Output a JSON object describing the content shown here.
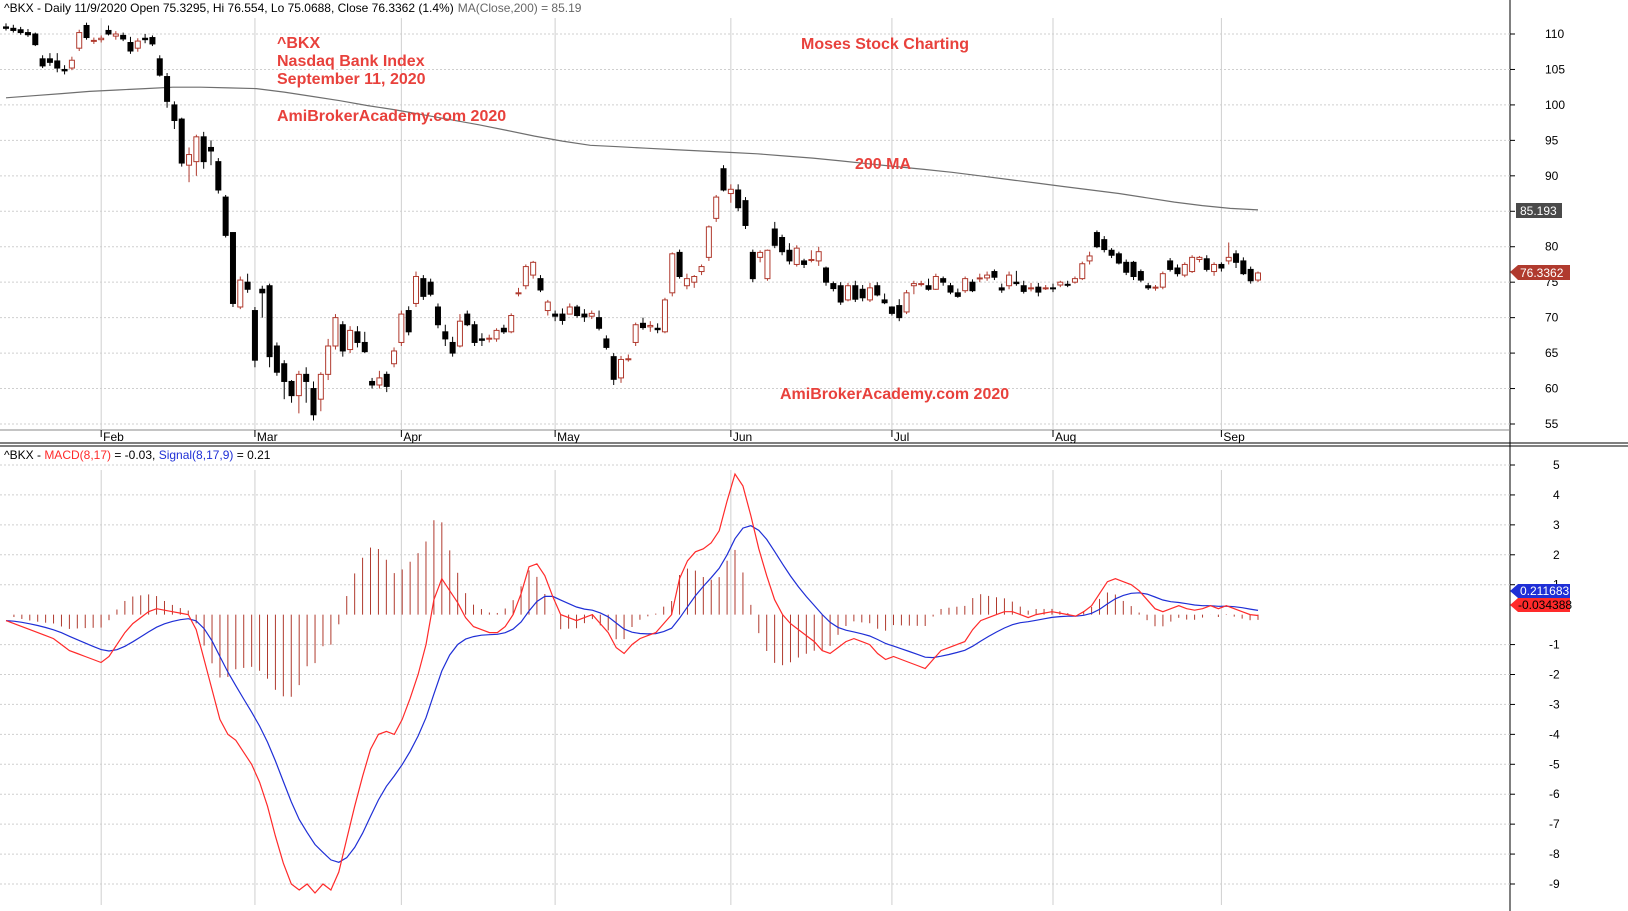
{
  "colors": {
    "candle_up": "#b03a2e",
    "candle_down": "#000000",
    "ma_line": "#6f6f6f",
    "macd_line": "#ff2a2a",
    "signal_line": "#1f2fd6",
    "histogram": "#b03a2e",
    "grid": "#cfcfcf",
    "annotation": "#e8413c",
    "label_ma_bg": "#4a4a4a",
    "label_close_bg": "#b03a2e",
    "label_signal_bg": "#1f2fd6",
    "label_macd_bg": "#ff2a2a"
  },
  "price_panel": {
    "header": {
      "prefix": "^BKX - Daily 11/9/2020 Open 75.3295, Hi 76.554, Lo 75.0688, Close 76.3362 (1.4%)",
      "ma": "MA(Close,200) = 85.19"
    },
    "annotations": {
      "ticker": "^BKX",
      "name": "Nasdaq Bank Index",
      "date": "September 11, 2020",
      "site_top": "AmiBrokerAcademy.com  2020",
      "author": "Moses Stock Charting",
      "ma_label": "200 MA",
      "site_bottom": "AmiBrokerAcademy.com  2020"
    },
    "axis_labels": [
      "110",
      "105",
      "100",
      "95",
      "90",
      "85",
      "80",
      "75",
      "70",
      "65",
      "60",
      "55"
    ],
    "last_ma_label": "85.193",
    "last_close_label": "76.3362"
  },
  "macd_panel": {
    "header": {
      "ticker": "^BKX - ",
      "macd": "MACD(8,17)",
      "macd_value": " = -0.03, ",
      "signal": "Signal(8,17,9)",
      "signal_value": " = 0.21"
    },
    "axis_labels": [
      "5",
      "4",
      "3",
      "2",
      "1",
      "-1",
      "-2",
      "-3",
      "-4",
      "-5",
      "-6",
      "-7",
      "-8",
      "-9"
    ],
    "last_signal_label": "0.211683",
    "last_macd_label": "-0.034388"
  },
  "months": [
    "Feb",
    "Mar",
    "Apr",
    "May",
    "Jun",
    "Jul",
    "Aug",
    "Sep"
  ],
  "chart_data": {
    "type": "line",
    "title": "",
    "price": {
      "ylim": [
        53,
        113
      ],
      "y_ticks": [
        110,
        105,
        100,
        95,
        90,
        85,
        80,
        75,
        70,
        65,
        60,
        55
      ],
      "candles": [
        [
          111,
          111.5,
          110.5,
          110.8
        ],
        [
          110.8,
          111.3,
          110.2,
          110.5
        ],
        [
          110.6,
          111,
          109.9,
          110.2
        ],
        [
          110.2,
          110.7,
          109.6,
          109.9
        ],
        [
          110,
          110.2,
          108.3,
          108.5
        ],
        [
          106.5,
          107,
          105.2,
          105.5
        ],
        [
          106.5,
          107.3,
          105.5,
          106
        ],
        [
          106.2,
          107.3,
          104.6,
          105.2
        ],
        [
          105,
          105.6,
          104.3,
          104.8
        ],
        [
          105.2,
          106.8,
          104.9,
          106.3
        ],
        [
          108,
          110.6,
          107.6,
          110.2
        ],
        [
          111.2,
          111.6,
          109.2,
          109.5
        ],
        [
          109,
          109.5,
          108.6,
          109.1
        ],
        [
          109.2,
          109.8,
          108.8,
          109.4
        ],
        [
          110.5,
          111.2,
          109.8,
          110
        ],
        [
          109.7,
          110.4,
          109.2,
          110
        ],
        [
          109.8,
          110.2,
          109,
          109.3
        ],
        [
          108.8,
          109.6,
          107.2,
          107.6
        ],
        [
          108,
          109.4,
          107.5,
          109
        ],
        [
          109.4,
          110,
          108.7,
          109.2
        ],
        [
          109.5,
          109.8,
          108.3,
          108.6
        ],
        [
          106.5,
          107,
          104,
          104.2
        ],
        [
          104,
          104.5,
          99.6,
          100.5
        ],
        [
          100,
          100.5,
          96.6,
          97.8
        ],
        [
          98,
          98.2,
          91.3,
          91.8
        ],
        [
          91.5,
          94,
          89.1,
          93
        ],
        [
          92,
          95.8,
          90,
          95.5
        ],
        [
          95.5,
          96.2,
          91,
          92
        ],
        [
          94,
          95,
          91.5,
          93.5
        ],
        [
          92,
          92.5,
          87.5,
          88
        ],
        [
          87,
          87.3,
          81.3,
          81.6
        ],
        [
          82,
          82,
          71.5,
          72
        ],
        [
          71.5,
          75.8,
          71.2,
          75.3
        ],
        [
          75,
          76.2,
          73.5,
          74
        ],
        [
          71,
          71.5,
          63,
          64
        ],
        [
          74,
          74.5,
          70,
          73.5
        ],
        [
          74.5,
          74.8,
          63,
          64.5
        ],
        [
          66,
          66.5,
          61.8,
          62.3
        ],
        [
          63.5,
          64,
          58.5,
          61
        ],
        [
          61,
          61.2,
          58,
          59
        ],
        [
          59,
          62.5,
          56.5,
          62
        ],
        [
          62,
          63,
          58,
          61
        ],
        [
          60,
          61,
          55.5,
          56.3
        ],
        [
          58.5,
          62.3,
          56.8,
          62
        ],
        [
          62,
          67,
          61.2,
          66
        ],
        [
          66,
          70.5,
          65.5,
          70
        ],
        [
          69,
          69.5,
          64.5,
          65.3
        ],
        [
          65.5,
          68.8,
          65,
          68.2
        ],
        [
          68,
          68.8,
          65.8,
          66.5
        ],
        [
          66.5,
          68,
          65,
          65.2
        ],
        [
          61,
          61.5,
          60,
          60.5
        ],
        [
          60.5,
          62.5,
          60,
          61.5
        ],
        [
          62,
          62.4,
          59.5,
          60.3
        ],
        [
          63.5,
          65.8,
          63,
          65.3
        ],
        [
          66.5,
          71,
          66,
          70.5
        ],
        [
          71,
          71.6,
          67.5,
          68
        ],
        [
          72,
          76.5,
          71.5,
          75.8
        ],
        [
          75.5,
          76,
          72.5,
          73
        ],
        [
          75,
          75.5,
          73,
          73.3
        ],
        [
          71.5,
          72,
          68.5,
          69
        ],
        [
          68,
          69,
          66,
          67
        ],
        [
          66.5,
          67.3,
          64.5,
          65
        ],
        [
          66,
          70.5,
          65.8,
          69.5
        ],
        [
          70.5,
          71,
          68.8,
          69
        ],
        [
          69,
          69.5,
          66,
          66.5
        ],
        [
          67,
          67.8,
          66,
          66.8
        ],
        [
          67,
          67.6,
          66.5,
          67.1
        ],
        [
          67,
          68.5,
          66.6,
          68.2
        ],
        [
          68.5,
          69,
          67.7,
          68
        ],
        [
          68,
          70.6,
          67.8,
          70.3
        ],
        [
          73.5,
          74.2,
          73,
          73.5
        ],
        [
          74.5,
          77.5,
          74,
          77.2
        ],
        [
          76,
          78,
          75.5,
          77.8
        ],
        [
          75.5,
          76,
          73.6,
          73.9
        ],
        [
          71,
          72.5,
          70.3,
          72.2
        ],
        [
          70.5,
          71,
          69.5,
          70.2
        ],
        [
          70.5,
          71.3,
          69,
          69.6
        ],
        [
          70.5,
          72,
          70.5,
          71.5
        ],
        [
          71.5,
          71.8,
          70,
          70.3
        ],
        [
          70.5,
          71.2,
          69.4,
          70.1
        ],
        [
          70.2,
          71,
          69.8,
          70.6
        ],
        [
          70,
          71,
          68.2,
          68.5
        ],
        [
          67,
          67.5,
          65.5,
          65.8
        ],
        [
          64.5,
          65,
          60.5,
          61.3
        ],
        [
          61.5,
          64.6,
          60.8,
          64.1
        ],
        [
          64.2,
          64.8,
          63.8,
          64.2
        ],
        [
          66.5,
          69.3,
          66,
          69
        ],
        [
          69.2,
          70,
          68.3,
          68.6
        ],
        [
          68.7,
          69.5,
          68,
          68.9
        ],
        [
          68.5,
          69.2,
          67.8,
          68.3
        ],
        [
          68,
          72.8,
          67.8,
          72.5
        ],
        [
          73.5,
          79.2,
          73,
          79
        ],
        [
          79.2,
          79.6,
          75.5,
          75.8
        ],
        [
          74.5,
          76.2,
          74,
          75.5
        ],
        [
          75,
          76,
          74.2,
          75.8
        ],
        [
          76.5,
          77.5,
          76,
          77.2
        ],
        [
          78.5,
          83,
          78,
          82.8
        ],
        [
          84,
          87.3,
          83.5,
          87
        ],
        [
          91,
          91.5,
          87.8,
          88
        ],
        [
          87.5,
          88.8,
          86.2,
          88.1
        ],
        [
          88,
          88.8,
          85,
          85.5
        ],
        [
          86.5,
          87,
          82.5,
          83
        ],
        [
          79.2,
          79.6,
          75,
          75.5
        ],
        [
          78.5,
          79.5,
          77.8,
          79.2
        ],
        [
          75.5,
          79.6,
          75.2,
          79.5
        ],
        [
          82.5,
          83.5,
          79.8,
          80.2
        ],
        [
          81.3,
          81.7,
          78.8,
          79.3
        ],
        [
          79.5,
          80.5,
          77.5,
          78
        ],
        [
          77.5,
          80.2,
          77.2,
          79.8
        ],
        [
          78,
          78.3,
          77,
          77.5
        ],
        [
          78.2,
          79.5,
          77.8,
          78.2
        ],
        [
          78,
          80,
          77.3,
          79.3
        ],
        [
          77,
          77.2,
          74.5,
          75
        ],
        [
          74.8,
          75.1,
          73.7,
          74.1
        ],
        [
          74.5,
          75,
          71.8,
          72.2
        ],
        [
          72.5,
          74.9,
          72.3,
          74.5
        ],
        [
          74.5,
          75.2,
          72.2,
          72.6
        ],
        [
          74,
          74.6,
          72.3,
          72.8
        ],
        [
          72.5,
          74.9,
          72.2,
          74.2
        ],
        [
          74.5,
          75,
          73,
          73.2
        ],
        [
          72.5,
          73.4,
          71.9,
          72.1
        ],
        [
          71.5,
          71.6,
          70.3,
          70.6
        ],
        [
          71.7,
          72.6,
          69.5,
          70
        ],
        [
          70.8,
          73.9,
          70.5,
          73.5
        ],
        [
          74.5,
          75.2,
          73.3,
          74.8
        ],
        [
          74.7,
          75.2,
          74.4,
          74.8
        ],
        [
          74.5,
          75.5,
          73.8,
          74
        ],
        [
          74,
          76.2,
          73.9,
          75.8
        ],
        [
          75.5,
          75.8,
          74.5,
          75
        ],
        [
          74.5,
          74.9,
          73.3,
          73.6
        ],
        [
          73.5,
          74.1,
          72.8,
          73
        ],
        [
          73.8,
          75.8,
          73.5,
          75.5
        ],
        [
          75,
          75.4,
          73.6,
          73.8
        ],
        [
          75.5,
          76.2,
          75,
          75.6
        ],
        [
          75.6,
          76.5,
          75.2,
          76
        ],
        [
          76.5,
          76.8,
          75.3,
          75.7
        ],
        [
          74.2,
          74.8,
          73.5,
          73.9
        ],
        [
          74.5,
          76.5,
          74,
          76
        ],
        [
          75,
          76.6,
          74.5,
          74.8
        ],
        [
          74.5,
          75.2,
          73.4,
          73.7
        ],
        [
          74.1,
          74.9,
          73.7,
          74.2
        ],
        [
          74.3,
          74.9,
          73,
          73.6
        ],
        [
          74.2,
          74.6,
          73.9,
          74.2
        ],
        [
          74.2,
          74.8,
          73.6,
          74.1
        ],
        [
          74.6,
          75.2,
          74.3,
          75
        ],
        [
          74.7,
          75.2,
          74.3,
          74.6
        ],
        [
          75,
          75.8,
          74.8,
          75.5
        ],
        [
          75.5,
          77.9,
          75.3,
          77.6
        ],
        [
          78,
          79.3,
          77.5,
          78.7
        ],
        [
          82,
          82.3,
          79.8,
          80
        ],
        [
          81,
          81.5,
          79.2,
          79.6
        ],
        [
          79.5,
          79.8,
          78.4,
          78.8
        ],
        [
          79,
          79.3,
          77.5,
          77.7
        ],
        [
          77.8,
          78.2,
          76,
          76.4
        ],
        [
          77.8,
          78,
          75.3,
          75.8
        ],
        [
          76.5,
          76.8,
          75,
          75.3
        ],
        [
          74.5,
          74.9,
          73.9,
          74.2
        ],
        [
          74.2,
          74.6,
          73.8,
          74.3
        ],
        [
          74.3,
          76.5,
          74,
          76.2
        ],
        [
          78,
          78.4,
          76.5,
          76.8
        ],
        [
          77,
          77.5,
          75.8,
          76.2
        ],
        [
          76,
          77.8,
          75.7,
          77.5
        ],
        [
          76.5,
          78.8,
          76.3,
          78.5
        ],
        [
          78.2,
          78.7,
          77.8,
          78.5
        ],
        [
          78.3,
          78.8,
          76.5,
          76.8
        ],
        [
          76.5,
          77.8,
          75.9,
          77.5
        ],
        [
          77.5,
          77.8,
          76.5,
          77
        ],
        [
          78,
          80.6,
          77.5,
          78.5
        ],
        [
          79,
          79.5,
          77,
          77.8
        ],
        [
          78,
          78.5,
          76,
          76.2
        ],
        [
          76.8,
          77.2,
          74.8,
          75.2
        ],
        [
          75.3,
          76.5,
          75,
          76.3
        ]
      ],
      "ma200": [
        101,
        101.3,
        101.6,
        101.9,
        102.1,
        102.3,
        102.5,
        102.5,
        102.4,
        102.3,
        101.8,
        101.2,
        100.6,
        99.9,
        99.3,
        98.6,
        97.9,
        97.2,
        96.4,
        95.6,
        94.9,
        94.3,
        94.1,
        93.9,
        93.7,
        93.5,
        93.3,
        93.1,
        92.8,
        92.5,
        92.1,
        91.7,
        91.3,
        90.9,
        90.5,
        90,
        89.5,
        89,
        88.5,
        88,
        87.5,
        86.9,
        86.3,
        85.8,
        85.4,
        85.2
      ]
    },
    "macd": {
      "ylim": [
        -9.8,
        5.6
      ],
      "y_ticks": [
        5,
        4,
        3,
        2,
        1,
        -1,
        -2,
        -3,
        -4,
        -5,
        -6,
        -7,
        -8,
        -9
      ],
      "macd": [
        -0.2,
        -0.3,
        -0.4,
        -0.5,
        -0.6,
        -0.7,
        -0.8,
        -1,
        -1.2,
        -1.3,
        -1.4,
        -1.5,
        -1.6,
        -1.4,
        -1,
        -0.6,
        -0.3,
        -0.1,
        0.1,
        0.2,
        0.15,
        0.1,
        0.05,
        0,
        -0.5,
        -1.5,
        -2.5,
        -3.5,
        -4,
        -4.2,
        -4.6,
        -5,
        -5.6,
        -6.4,
        -7.4,
        -8.3,
        -9,
        -9.2,
        -9,
        -9.3,
        -9,
        -9.2,
        -8.6,
        -7.5,
        -6.4,
        -5.4,
        -4.5,
        -4,
        -3.9,
        -4,
        -3.5,
        -2.8,
        -2,
        -1,
        0.5,
        1.2,
        0.8,
        0.4,
        -0.1,
        -0.4,
        -0.5,
        -0.6,
        -0.6,
        -0.4,
        0,
        0.7,
        1.6,
        1.7,
        1.3,
        0.6,
        0,
        -0.1,
        -0.2,
        -0.1,
        0,
        -0.3,
        -0.6,
        -1.1,
        -1.3,
        -1,
        -0.8,
        -0.7,
        -0.6,
        -0.3,
        0,
        1.2,
        1.8,
        2.1,
        2.2,
        2.4,
        2.8,
        3.8,
        4.7,
        4.3,
        3.3,
        2.2,
        1.3,
        0.5,
        0,
        -0.3,
        -0.5,
        -0.7,
        -0.9,
        -1.2,
        -1.3,
        -1.1,
        -0.9,
        -0.8,
        -0.9,
        -1,
        -1.3,
        -1.5,
        -1.4,
        -1.5,
        -1.6,
        -1.7,
        -1.8,
        -1.5,
        -1.2,
        -1.1,
        -1,
        -0.9,
        -0.5,
        -0.2,
        -0.1,
        0,
        0.1,
        0.1,
        0,
        -0.1,
        0,
        0.05,
        0.1,
        0.05,
        0,
        -0.05,
        0.1,
        0.3,
        0.7,
        1.1,
        1.2,
        1.1,
        1,
        0.8,
        0.5,
        0.2,
        0.1,
        0.2,
        0.3,
        0.2,
        0.15,
        0.2,
        0.3,
        0.2,
        0.3,
        0.2,
        0.1,
        0,
        -0.03
      ]
    }
  }
}
